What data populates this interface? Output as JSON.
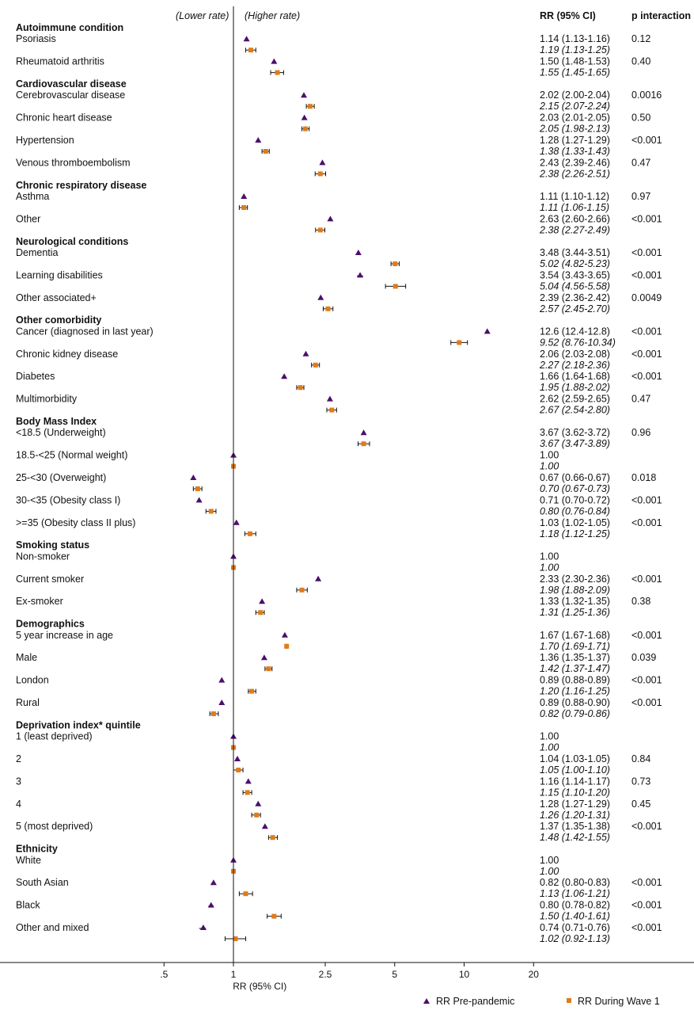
{
  "chart_data": {
    "type": "forest",
    "xscale": "log",
    "xlim": [
      0.43,
      22
    ],
    "reference_line": 1,
    "direction_labels": {
      "left": "(Lower rate)",
      "right": "(Higher rate)"
    },
    "columns": {
      "rr": "RR (95% CI)",
      "p": "p interaction"
    },
    "xlabel": "RR (95% CI)",
    "xticks": [
      {
        "value": 0.5,
        "label": ".5"
      },
      {
        "value": 1,
        "label": "1"
      },
      {
        "value": 2.5,
        "label": "2.5"
      },
      {
        "value": 5,
        "label": "5"
      },
      {
        "value": 10,
        "label": "10"
      },
      {
        "value": 20,
        "label": "20"
      }
    ],
    "legend": {
      "position": "bottom",
      "pre": "RR Pre-pandemic",
      "wave": "RR During Wave 1"
    },
    "colors": {
      "pre": "#4b0f6b",
      "wave": "#e07b1a"
    },
    "groups": [
      {
        "header": "Autoimmune condition",
        "rows": [
          {
            "label": "Psoriasis",
            "pre": [
              1.14,
              1.13,
              1.16
            ],
            "pre_text": "1.14 (1.13-1.16)",
            "wave": [
              1.19,
              1.13,
              1.25
            ],
            "wave_text": "1.19 (1.13-1.25)",
            "p": "0.12"
          },
          {
            "label": "Rheumatoid arthritis",
            "pre": [
              1.5,
              1.48,
              1.53
            ],
            "pre_text": "1.50 (1.48-1.53)",
            "wave": [
              1.55,
              1.45,
              1.65
            ],
            "wave_text": "1.55 (1.45-1.65)",
            "p": "0.40"
          }
        ]
      },
      {
        "header": "Cardiovascular disease",
        "rows": [
          {
            "label": "Cerebrovascular disease",
            "pre": [
              2.02,
              2.0,
              2.04
            ],
            "pre_text": "2.02 (2.00-2.04)",
            "wave": [
              2.15,
              2.07,
              2.24
            ],
            "wave_text": "2.15 (2.07-2.24)",
            "p": "0.0016"
          },
          {
            "label": "Chronic heart disease",
            "pre": [
              2.03,
              2.01,
              2.05
            ],
            "pre_text": "2.03 (2.01-2.05)",
            "wave": [
              2.05,
              1.98,
              2.13
            ],
            "wave_text": "2.05 (1.98-2.13)",
            "p": "0.50"
          },
          {
            "label": "Hypertension",
            "pre": [
              1.28,
              1.27,
              1.29
            ],
            "pre_text": "1.28 (1.27-1.29)",
            "wave": [
              1.38,
              1.33,
              1.43
            ],
            "wave_text": "1.38 (1.33-1.43)",
            "p": "<0.001"
          },
          {
            "label": "Venous thromboembolism",
            "pre": [
              2.43,
              2.39,
              2.46
            ],
            "pre_text": "2.43 (2.39-2.46)",
            "wave": [
              2.38,
              2.26,
              2.51
            ],
            "wave_text": "2.38 (2.26-2.51)",
            "p": "0.47"
          }
        ]
      },
      {
        "header": "Chronic respiratory disease",
        "rows": [
          {
            "label": "Asthma",
            "pre": [
              1.11,
              1.1,
              1.12
            ],
            "pre_text": "1.11 (1.10-1.12)",
            "wave": [
              1.11,
              1.06,
              1.15
            ],
            "wave_text": "1.11 (1.06-1.15)",
            "p": "0.97"
          },
          {
            "label": "Other",
            "pre": [
              2.63,
              2.6,
              2.66
            ],
            "pre_text": "2.63 (2.60-2.66)",
            "wave": [
              2.38,
              2.27,
              2.49
            ],
            "wave_text": "2.38 (2.27-2.49)",
            "p": "<0.001"
          }
        ]
      },
      {
        "header": "Neurological conditions",
        "rows": [
          {
            "label": "Dementia",
            "pre": [
              3.48,
              3.44,
              3.51
            ],
            "pre_text": "3.48 (3.44-3.51)",
            "wave": [
              5.02,
              4.82,
              5.23
            ],
            "wave_text": "5.02 (4.82-5.23)",
            "p": "<0.001"
          },
          {
            "label": "Learning disabilities",
            "pre": [
              3.54,
              3.43,
              3.65
            ],
            "pre_text": "3.54 (3.43-3.65)",
            "wave": [
              5.04,
              4.56,
              5.58
            ],
            "wave_text": "5.04 (4.56-5.58)",
            "p": "<0.001"
          },
          {
            "label": "Other associated+",
            "pre": [
              2.39,
              2.36,
              2.42
            ],
            "pre_text": "2.39 (2.36-2.42)",
            "wave": [
              2.57,
              2.45,
              2.7
            ],
            "wave_text": "2.57 (2.45-2.70)",
            "p": "0.0049"
          }
        ]
      },
      {
        "header": "Other comorbidity",
        "rows": [
          {
            "label": "Cancer (diagnosed in last year)",
            "pre": [
              12.6,
              12.4,
              12.8
            ],
            "pre_text": "12.6 (12.4-12.8)",
            "wave": [
              9.52,
              8.76,
              10.34
            ],
            "wave_text": "9.52 (8.76-10.34)",
            "p": "<0.001"
          },
          {
            "label": "Chronic kidney disease",
            "pre": [
              2.06,
              2.03,
              2.08
            ],
            "pre_text": "2.06 (2.03-2.08)",
            "wave": [
              2.27,
              2.18,
              2.36
            ],
            "wave_text": "2.27 (2.18-2.36)",
            "p": "<0.001"
          },
          {
            "label": "Diabetes",
            "pre": [
              1.66,
              1.64,
              1.68
            ],
            "pre_text": "1.66 (1.64-1.68)",
            "wave": [
              1.95,
              1.88,
              2.02
            ],
            "wave_text": "1.95 (1.88-2.02)",
            "p": "<0.001"
          },
          {
            "label": "Multimorbidity",
            "pre": [
              2.62,
              2.59,
              2.65
            ],
            "pre_text": "2.62 (2.59-2.65)",
            "wave": [
              2.67,
              2.54,
              2.8
            ],
            "wave_text": "2.67 (2.54-2.80)",
            "p": "0.47"
          }
        ]
      },
      {
        "header": "Body Mass Index",
        "rows": [
          {
            "label": "<18.5 (Underweight)",
            "pre": [
              3.67,
              3.62,
              3.72
            ],
            "pre_text": "3.67 (3.62-3.72)",
            "wave": [
              3.67,
              3.47,
              3.89
            ],
            "wave_text": "3.67 (3.47-3.89)",
            "p": "0.96"
          },
          {
            "label": "18.5-<25 (Normal weight)",
            "pre": [
              1.0,
              1.0,
              1.0
            ],
            "pre_text": "1.00",
            "wave": [
              1.0,
              1.0,
              1.0
            ],
            "wave_text": "1.00",
            "p": ""
          },
          {
            "label": "25-<30 (Overweight)",
            "pre": [
              0.67,
              0.66,
              0.67
            ],
            "pre_text": "0.67 (0.66-0.67)",
            "wave": [
              0.7,
              0.67,
              0.73
            ],
            "wave_text": "0.70 (0.67-0.73)",
            "p": "0.018"
          },
          {
            "label": "30-<35 (Obesity class I)",
            "pre": [
              0.71,
              0.7,
              0.72
            ],
            "pre_text": "0.71 (0.70-0.72)",
            "wave": [
              0.8,
              0.76,
              0.84
            ],
            "wave_text": "0.80 (0.76-0.84)",
            "p": "<0.001"
          },
          {
            "label": ">=35 (Obesity class II plus)",
            "pre": [
              1.03,
              1.02,
              1.05
            ],
            "pre_text": "1.03 (1.02-1.05)",
            "wave": [
              1.18,
              1.12,
              1.25
            ],
            "wave_text": "1.18 (1.12-1.25)",
            "p": "<0.001"
          }
        ]
      },
      {
        "header": "Smoking status",
        "rows": [
          {
            "label": "Non-smoker",
            "pre": [
              1.0,
              1.0,
              1.0
            ],
            "pre_text": "1.00",
            "wave": [
              1.0,
              1.0,
              1.0
            ],
            "wave_text": "1.00",
            "p": ""
          },
          {
            "label": "Current smoker",
            "pre": [
              2.33,
              2.3,
              2.36
            ],
            "pre_text": "2.33 (2.30-2.36)",
            "wave": [
              1.98,
              1.88,
              2.09
            ],
            "wave_text": "1.98 (1.88-2.09)",
            "p": "<0.001"
          },
          {
            "label": "Ex-smoker",
            "pre": [
              1.33,
              1.32,
              1.35
            ],
            "pre_text": "1.33 (1.32-1.35)",
            "wave": [
              1.31,
              1.25,
              1.36
            ],
            "wave_text": "1.31 (1.25-1.36)",
            "p": "0.38"
          }
        ]
      },
      {
        "header": "Demographics",
        "rows": [
          {
            "label": "5 year increase in age",
            "pre": [
              1.67,
              1.67,
              1.68
            ],
            "pre_text": "1.67 (1.67-1.68)",
            "wave": [
              1.7,
              1.69,
              1.71
            ],
            "wave_text": "1.70 (1.69-1.71)",
            "p": "<0.001"
          },
          {
            "label": "Male",
            "pre": [
              1.36,
              1.35,
              1.37
            ],
            "pre_text": "1.36 (1.35-1.37)",
            "wave": [
              1.42,
              1.37,
              1.47
            ],
            "wave_text": "1.42 (1.37-1.47)",
            "p": "0.039"
          },
          {
            "label": "London",
            "pre": [
              0.89,
              0.88,
              0.89
            ],
            "pre_text": "0.89 (0.88-0.89)",
            "wave": [
              1.2,
              1.16,
              1.25
            ],
            "wave_text": "1.20 (1.16-1.25)",
            "p": "<0.001"
          },
          {
            "label": "Rural",
            "pre": [
              0.89,
              0.88,
              0.9
            ],
            "pre_text": "0.89 (0.88-0.90)",
            "wave": [
              0.82,
              0.79,
              0.86
            ],
            "wave_text": "0.82 (0.79-0.86)",
            "p": "<0.001"
          }
        ]
      },
      {
        "header": "Deprivation index* quintile",
        "rows": [
          {
            "label": "1 (least deprived)",
            "pre": [
              1.0,
              1.0,
              1.0
            ],
            "pre_text": "1.00",
            "wave": [
              1.0,
              1.0,
              1.0
            ],
            "wave_text": "1.00",
            "p": ""
          },
          {
            "label": "2",
            "pre": [
              1.04,
              1.03,
              1.05
            ],
            "pre_text": "1.04 (1.03-1.05)",
            "wave": [
              1.05,
              1.0,
              1.1
            ],
            "wave_text": "1.05 (1.00-1.10)",
            "p": "0.84"
          },
          {
            "label": "3",
            "pre": [
              1.16,
              1.14,
              1.17
            ],
            "pre_text": "1.16 (1.14-1.17)",
            "wave": [
              1.15,
              1.1,
              1.2
            ],
            "wave_text": "1.15 (1.10-1.20)",
            "p": "0.73"
          },
          {
            "label": "4",
            "pre": [
              1.28,
              1.27,
              1.29
            ],
            "pre_text": "1.28 (1.27-1.29)",
            "wave": [
              1.26,
              1.2,
              1.31
            ],
            "wave_text": "1.26 (1.20-1.31)",
            "p": "0.45"
          },
          {
            "label": "5 (most deprived)",
            "pre": [
              1.37,
              1.35,
              1.38
            ],
            "pre_text": "1.37 (1.35-1.38)",
            "wave": [
              1.48,
              1.42,
              1.55
            ],
            "wave_text": "1.48 (1.42-1.55)",
            "p": "<0.001"
          }
        ]
      },
      {
        "header": "Ethnicity",
        "rows": [
          {
            "label": "White",
            "pre": [
              1.0,
              1.0,
              1.0
            ],
            "pre_text": "1.00",
            "wave": [
              1.0,
              1.0,
              1.0
            ],
            "wave_text": "1.00",
            "p": ""
          },
          {
            "label": "South Asian",
            "pre": [
              0.82,
              0.8,
              0.83
            ],
            "pre_text": "0.82 (0.80-0.83)",
            "wave": [
              1.13,
              1.06,
              1.21
            ],
            "wave_text": "1.13 (1.06-1.21)",
            "p": "<0.001"
          },
          {
            "label": "Black",
            "pre": [
              0.8,
              0.78,
              0.82
            ],
            "pre_text": "0.80 (0.78-0.82)",
            "wave": [
              1.5,
              1.4,
              1.61
            ],
            "wave_text": "1.50 (1.40-1.61)",
            "p": "<0.001"
          },
          {
            "label": "Other and mixed",
            "pre": [
              0.74,
              0.71,
              0.76
            ],
            "pre_text": "0.74 (0.71-0.76)",
            "wave": [
              1.02,
              0.92,
              1.13
            ],
            "wave_text": "1.02 (0.92-1.13)",
            "p": "<0.001"
          }
        ]
      }
    ]
  }
}
